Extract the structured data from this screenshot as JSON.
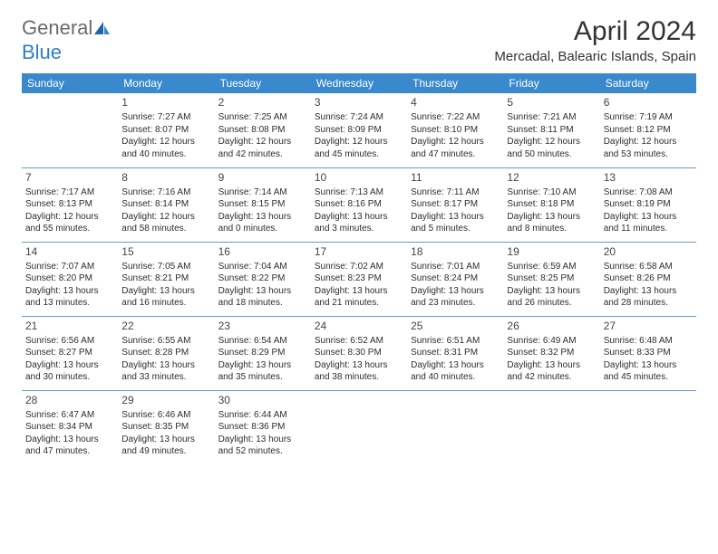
{
  "brand": {
    "general": "General",
    "blue": "Blue"
  },
  "title": "April 2024",
  "location": "Mercadal, Balearic Islands, Spain",
  "colors": {
    "header_bg": "#3a89cd",
    "header_text": "#ffffff",
    "row_border": "#6a99c0",
    "logo_gray": "#6b6b6b",
    "logo_blue": "#2f7fc0"
  },
  "typography": {
    "title_fontsize": 30,
    "location_fontsize": 15,
    "th_fontsize": 12,
    "cell_fontsize": 10,
    "daynum_fontsize": 12
  },
  "daysOfWeek": [
    "Sunday",
    "Monday",
    "Tuesday",
    "Wednesday",
    "Thursday",
    "Friday",
    "Saturday"
  ],
  "weeks": [
    [
      null,
      {
        "n": "1",
        "sr": "Sunrise: 7:27 AM",
        "ss": "Sunset: 8:07 PM",
        "d1": "Daylight: 12 hours",
        "d2": "and 40 minutes."
      },
      {
        "n": "2",
        "sr": "Sunrise: 7:25 AM",
        "ss": "Sunset: 8:08 PM",
        "d1": "Daylight: 12 hours",
        "d2": "and 42 minutes."
      },
      {
        "n": "3",
        "sr": "Sunrise: 7:24 AM",
        "ss": "Sunset: 8:09 PM",
        "d1": "Daylight: 12 hours",
        "d2": "and 45 minutes."
      },
      {
        "n": "4",
        "sr": "Sunrise: 7:22 AM",
        "ss": "Sunset: 8:10 PM",
        "d1": "Daylight: 12 hours",
        "d2": "and 47 minutes."
      },
      {
        "n": "5",
        "sr": "Sunrise: 7:21 AM",
        "ss": "Sunset: 8:11 PM",
        "d1": "Daylight: 12 hours",
        "d2": "and 50 minutes."
      },
      {
        "n": "6",
        "sr": "Sunrise: 7:19 AM",
        "ss": "Sunset: 8:12 PM",
        "d1": "Daylight: 12 hours",
        "d2": "and 53 minutes."
      }
    ],
    [
      {
        "n": "7",
        "sr": "Sunrise: 7:17 AM",
        "ss": "Sunset: 8:13 PM",
        "d1": "Daylight: 12 hours",
        "d2": "and 55 minutes."
      },
      {
        "n": "8",
        "sr": "Sunrise: 7:16 AM",
        "ss": "Sunset: 8:14 PM",
        "d1": "Daylight: 12 hours",
        "d2": "and 58 minutes."
      },
      {
        "n": "9",
        "sr": "Sunrise: 7:14 AM",
        "ss": "Sunset: 8:15 PM",
        "d1": "Daylight: 13 hours",
        "d2": "and 0 minutes."
      },
      {
        "n": "10",
        "sr": "Sunrise: 7:13 AM",
        "ss": "Sunset: 8:16 PM",
        "d1": "Daylight: 13 hours",
        "d2": "and 3 minutes."
      },
      {
        "n": "11",
        "sr": "Sunrise: 7:11 AM",
        "ss": "Sunset: 8:17 PM",
        "d1": "Daylight: 13 hours",
        "d2": "and 5 minutes."
      },
      {
        "n": "12",
        "sr": "Sunrise: 7:10 AM",
        "ss": "Sunset: 8:18 PM",
        "d1": "Daylight: 13 hours",
        "d2": "and 8 minutes."
      },
      {
        "n": "13",
        "sr": "Sunrise: 7:08 AM",
        "ss": "Sunset: 8:19 PM",
        "d1": "Daylight: 13 hours",
        "d2": "and 11 minutes."
      }
    ],
    [
      {
        "n": "14",
        "sr": "Sunrise: 7:07 AM",
        "ss": "Sunset: 8:20 PM",
        "d1": "Daylight: 13 hours",
        "d2": "and 13 minutes."
      },
      {
        "n": "15",
        "sr": "Sunrise: 7:05 AM",
        "ss": "Sunset: 8:21 PM",
        "d1": "Daylight: 13 hours",
        "d2": "and 16 minutes."
      },
      {
        "n": "16",
        "sr": "Sunrise: 7:04 AM",
        "ss": "Sunset: 8:22 PM",
        "d1": "Daylight: 13 hours",
        "d2": "and 18 minutes."
      },
      {
        "n": "17",
        "sr": "Sunrise: 7:02 AM",
        "ss": "Sunset: 8:23 PM",
        "d1": "Daylight: 13 hours",
        "d2": "and 21 minutes."
      },
      {
        "n": "18",
        "sr": "Sunrise: 7:01 AM",
        "ss": "Sunset: 8:24 PM",
        "d1": "Daylight: 13 hours",
        "d2": "and 23 minutes."
      },
      {
        "n": "19",
        "sr": "Sunrise: 6:59 AM",
        "ss": "Sunset: 8:25 PM",
        "d1": "Daylight: 13 hours",
        "d2": "and 26 minutes."
      },
      {
        "n": "20",
        "sr": "Sunrise: 6:58 AM",
        "ss": "Sunset: 8:26 PM",
        "d1": "Daylight: 13 hours",
        "d2": "and 28 minutes."
      }
    ],
    [
      {
        "n": "21",
        "sr": "Sunrise: 6:56 AM",
        "ss": "Sunset: 8:27 PM",
        "d1": "Daylight: 13 hours",
        "d2": "and 30 minutes."
      },
      {
        "n": "22",
        "sr": "Sunrise: 6:55 AM",
        "ss": "Sunset: 8:28 PM",
        "d1": "Daylight: 13 hours",
        "d2": "and 33 minutes."
      },
      {
        "n": "23",
        "sr": "Sunrise: 6:54 AM",
        "ss": "Sunset: 8:29 PM",
        "d1": "Daylight: 13 hours",
        "d2": "and 35 minutes."
      },
      {
        "n": "24",
        "sr": "Sunrise: 6:52 AM",
        "ss": "Sunset: 8:30 PM",
        "d1": "Daylight: 13 hours",
        "d2": "and 38 minutes."
      },
      {
        "n": "25",
        "sr": "Sunrise: 6:51 AM",
        "ss": "Sunset: 8:31 PM",
        "d1": "Daylight: 13 hours",
        "d2": "and 40 minutes."
      },
      {
        "n": "26",
        "sr": "Sunrise: 6:49 AM",
        "ss": "Sunset: 8:32 PM",
        "d1": "Daylight: 13 hours",
        "d2": "and 42 minutes."
      },
      {
        "n": "27",
        "sr": "Sunrise: 6:48 AM",
        "ss": "Sunset: 8:33 PM",
        "d1": "Daylight: 13 hours",
        "d2": "and 45 minutes."
      }
    ],
    [
      {
        "n": "28",
        "sr": "Sunrise: 6:47 AM",
        "ss": "Sunset: 8:34 PM",
        "d1": "Daylight: 13 hours",
        "d2": "and 47 minutes."
      },
      {
        "n": "29",
        "sr": "Sunrise: 6:46 AM",
        "ss": "Sunset: 8:35 PM",
        "d1": "Daylight: 13 hours",
        "d2": "and 49 minutes."
      },
      {
        "n": "30",
        "sr": "Sunrise: 6:44 AM",
        "ss": "Sunset: 8:36 PM",
        "d1": "Daylight: 13 hours",
        "d2": "and 52 minutes."
      },
      null,
      null,
      null,
      null
    ]
  ]
}
